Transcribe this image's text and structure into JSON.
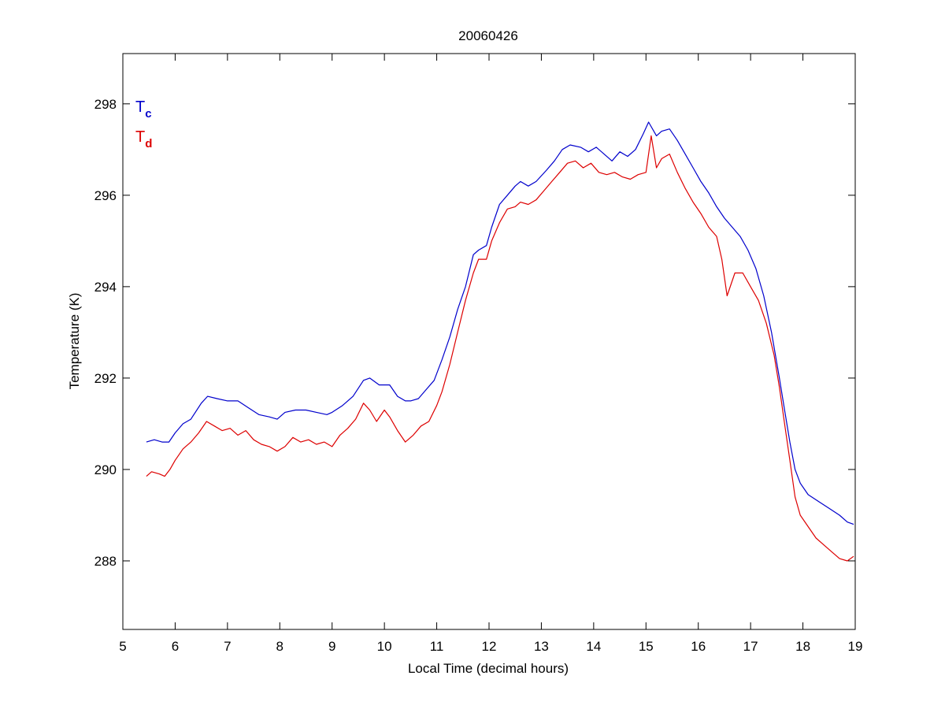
{
  "chart_data": {
    "type": "line",
    "title": "20060426",
    "xlabel": "Local Time (decimal hours)",
    "ylabel": "Temperature (K)",
    "xlim": [
      5,
      19
    ],
    "ylim": [
      286.5,
      299.1
    ],
    "xticks": [
      5,
      6,
      7,
      8,
      9,
      10,
      11,
      12,
      13,
      14,
      15,
      16,
      17,
      18,
      19
    ],
    "yticks": [
      288,
      290,
      292,
      294,
      296,
      298
    ],
    "grid": false,
    "legend_position": "top-left",
    "series": [
      {
        "name": "T",
        "subscript": "c",
        "color": "#0000cc",
        "x": [
          5.45,
          5.6,
          5.75,
          5.88,
          6.0,
          6.15,
          6.3,
          6.5,
          6.62,
          6.8,
          7.0,
          7.2,
          7.4,
          7.6,
          7.8,
          7.95,
          8.1,
          8.3,
          8.5,
          8.7,
          8.9,
          9.0,
          9.2,
          9.4,
          9.6,
          9.72,
          9.9,
          10.1,
          10.25,
          10.4,
          10.5,
          10.65,
          10.8,
          10.95,
          11.1,
          11.25,
          11.4,
          11.55,
          11.7,
          11.8,
          11.95,
          12.05,
          12.2,
          12.35,
          12.5,
          12.6,
          12.75,
          12.9,
          13.1,
          13.25,
          13.4,
          13.55,
          13.75,
          13.9,
          14.05,
          14.2,
          14.35,
          14.5,
          14.65,
          14.8,
          14.95,
          15.05,
          15.2,
          15.3,
          15.45,
          15.6,
          15.75,
          15.9,
          16.05,
          16.2,
          16.35,
          16.5,
          16.65,
          16.8,
          16.95,
          17.1,
          17.25,
          17.4,
          17.55,
          17.65,
          17.75,
          17.85,
          17.95,
          18.1,
          18.3,
          18.5,
          18.7,
          18.85,
          18.97
        ],
        "values": [
          290.6,
          290.65,
          290.6,
          290.6,
          290.8,
          291.0,
          291.1,
          291.45,
          291.6,
          291.55,
          291.5,
          291.5,
          291.35,
          291.2,
          291.15,
          291.1,
          291.25,
          291.3,
          291.3,
          291.25,
          291.2,
          291.25,
          291.4,
          291.6,
          291.95,
          292.0,
          291.85,
          291.85,
          291.6,
          291.5,
          291.5,
          291.55,
          291.75,
          291.95,
          292.4,
          292.9,
          293.5,
          294.0,
          294.7,
          294.8,
          294.9,
          295.3,
          295.8,
          296.0,
          296.2,
          296.3,
          296.2,
          296.3,
          296.55,
          296.75,
          297.0,
          297.1,
          297.05,
          296.95,
          297.05,
          296.9,
          296.75,
          296.95,
          296.85,
          297.0,
          297.35,
          297.6,
          297.3,
          297.4,
          297.45,
          297.2,
          296.9,
          296.6,
          296.3,
          296.05,
          295.75,
          295.5,
          295.3,
          295.1,
          294.8,
          294.4,
          293.8,
          293.0,
          292.0,
          291.3,
          290.6,
          290.0,
          289.7,
          289.45,
          289.3,
          289.15,
          289.0,
          288.85,
          288.8
        ]
      },
      {
        "name": "T",
        "subscript": "d",
        "color": "#dd0000",
        "x": [
          5.45,
          5.55,
          5.7,
          5.8,
          5.9,
          6.0,
          6.15,
          6.3,
          6.45,
          6.6,
          6.75,
          6.9,
          7.05,
          7.2,
          7.35,
          7.5,
          7.65,
          7.8,
          7.95,
          8.1,
          8.25,
          8.4,
          8.55,
          8.7,
          8.85,
          9.0,
          9.15,
          9.3,
          9.45,
          9.6,
          9.72,
          9.85,
          10.0,
          10.1,
          10.25,
          10.4,
          10.55,
          10.7,
          10.85,
          11.0,
          11.1,
          11.25,
          11.4,
          11.55,
          11.7,
          11.8,
          11.95,
          12.05,
          12.2,
          12.35,
          12.5,
          12.6,
          12.75,
          12.9,
          13.05,
          13.2,
          13.35,
          13.5,
          13.65,
          13.8,
          13.95,
          14.1,
          14.25,
          14.4,
          14.55,
          14.7,
          14.85,
          15.0,
          15.1,
          15.2,
          15.3,
          15.45,
          15.6,
          15.75,
          15.9,
          16.05,
          16.2,
          16.35,
          16.45,
          16.55,
          16.7,
          16.85,
          17.0,
          17.15,
          17.3,
          17.45,
          17.55,
          17.65,
          17.75,
          17.85,
          17.95,
          18.1,
          18.25,
          18.4,
          18.55,
          18.7,
          18.85,
          18.97
        ],
        "values": [
          289.85,
          289.95,
          289.9,
          289.85,
          290.0,
          290.2,
          290.45,
          290.6,
          290.8,
          291.05,
          290.95,
          290.85,
          290.9,
          290.75,
          290.85,
          290.65,
          290.55,
          290.5,
          290.4,
          290.5,
          290.7,
          290.6,
          290.65,
          290.55,
          290.6,
          290.5,
          290.75,
          290.9,
          291.1,
          291.45,
          291.3,
          291.05,
          291.3,
          291.15,
          290.85,
          290.6,
          290.75,
          290.95,
          291.05,
          291.4,
          291.7,
          292.3,
          293.0,
          293.7,
          294.3,
          294.6,
          294.6,
          295.0,
          295.4,
          295.7,
          295.75,
          295.85,
          295.8,
          295.9,
          296.1,
          296.3,
          296.5,
          296.7,
          296.75,
          296.6,
          296.7,
          296.5,
          296.45,
          296.5,
          296.4,
          296.35,
          296.45,
          296.5,
          297.3,
          296.6,
          296.8,
          296.9,
          296.5,
          296.15,
          295.85,
          295.6,
          295.3,
          295.1,
          294.6,
          293.8,
          294.3,
          294.3,
          294.0,
          293.7,
          293.2,
          292.5,
          291.8,
          291.0,
          290.2,
          289.4,
          289.0,
          288.75,
          288.5,
          288.35,
          288.2,
          288.05,
          288.0,
          288.1
        ]
      }
    ]
  }
}
